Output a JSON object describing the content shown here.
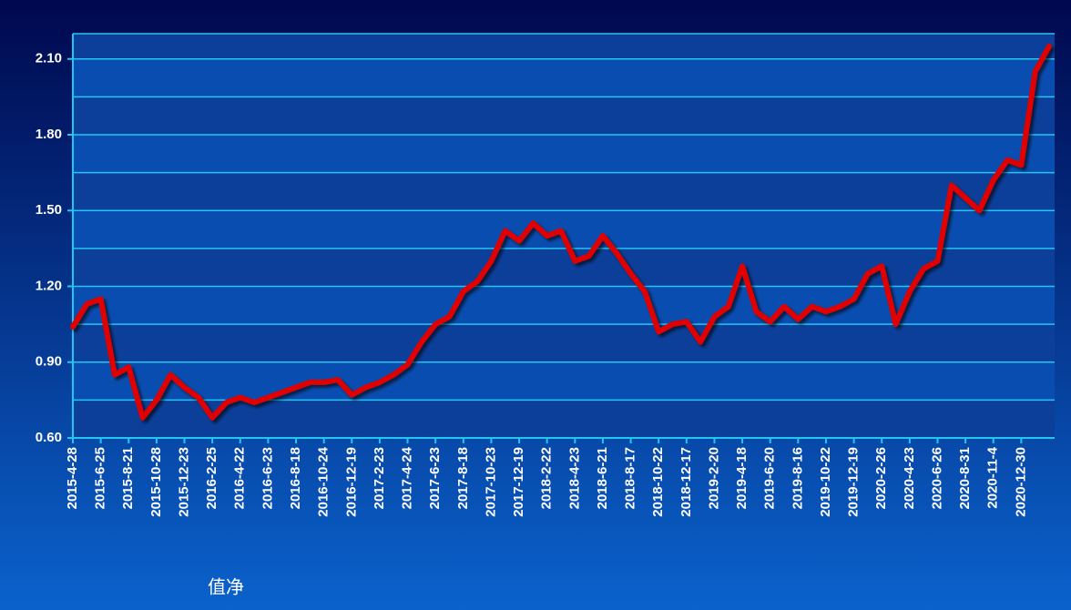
{
  "chart_data": {
    "type": "line",
    "categories": [
      "2015-4-28",
      null,
      "2015-6-25",
      null,
      "2015-8-21",
      null,
      "2015-10-28",
      null,
      "2015-12-23",
      null,
      "2016-2-25",
      null,
      "2016-4-22",
      null,
      "2016-6-23",
      null,
      "2016-8-18",
      null,
      "2016-10-24",
      null,
      "2016-12-19",
      null,
      "2017-2-23",
      null,
      "2017-4-24",
      null,
      "2017-6-23",
      null,
      "2017-8-18",
      null,
      "2017-10-23",
      null,
      "2017-12-19",
      null,
      "2018-2-22",
      null,
      "2018-4-23",
      null,
      "2018-6-21",
      null,
      "2018-8-17",
      null,
      "2018-10-22",
      null,
      "2018-12-17",
      null,
      "2019-2-20",
      null,
      "2019-4-18",
      null,
      "2019-6-20",
      null,
      "2019-8-16",
      null,
      "2019-10-22",
      null,
      "2019-12-19",
      null,
      "2020-2-26",
      null,
      "2020-4-23",
      null,
      "2020-6-26",
      null,
      "2020-8-31",
      null,
      "2020-11-4",
      null,
      "2020-12-30",
      null,
      null
    ],
    "series": [
      {
        "name": "值净",
        "color": "#e00000",
        "values": [
          1.04,
          1.13,
          1.15,
          0.85,
          0.88,
          0.68,
          0.75,
          0.85,
          0.8,
          0.76,
          0.68,
          0.74,
          0.76,
          0.74,
          0.76,
          0.78,
          0.8,
          0.82,
          0.82,
          0.83,
          0.77,
          0.8,
          0.82,
          0.85,
          0.89,
          0.98,
          1.05,
          1.08,
          1.18,
          1.22,
          1.3,
          1.42,
          1.38,
          1.45,
          1.4,
          1.42,
          1.3,
          1.32,
          1.4,
          1.33,
          1.25,
          1.18,
          1.02,
          1.05,
          1.06,
          0.98,
          1.08,
          1.12,
          1.28,
          1.1,
          1.06,
          1.12,
          1.07,
          1.12,
          1.1,
          1.12,
          1.15,
          1.25,
          1.28,
          1.05,
          1.18,
          1.27,
          1.3,
          1.6,
          1.55,
          1.5,
          1.62,
          1.7,
          1.68,
          2.05,
          2.15
        ]
      }
    ],
    "ylim": [
      0.6,
      2.2
    ],
    "yticks": [
      {
        "value": 0.6,
        "label": "0.60"
      },
      {
        "value": 0.9,
        "label": "0.90"
      },
      {
        "value": 1.2,
        "label": "1.20"
      },
      {
        "value": 1.5,
        "label": "1.50"
      },
      {
        "value": 1.8,
        "label": "1.80"
      },
      {
        "value": 2.1,
        "label": "2.10"
      }
    ],
    "minor_yticks": [
      0.75,
      1.05,
      1.35,
      1.65,
      1.95
    ],
    "grid": true,
    "legend": "bottom-left"
  }
}
